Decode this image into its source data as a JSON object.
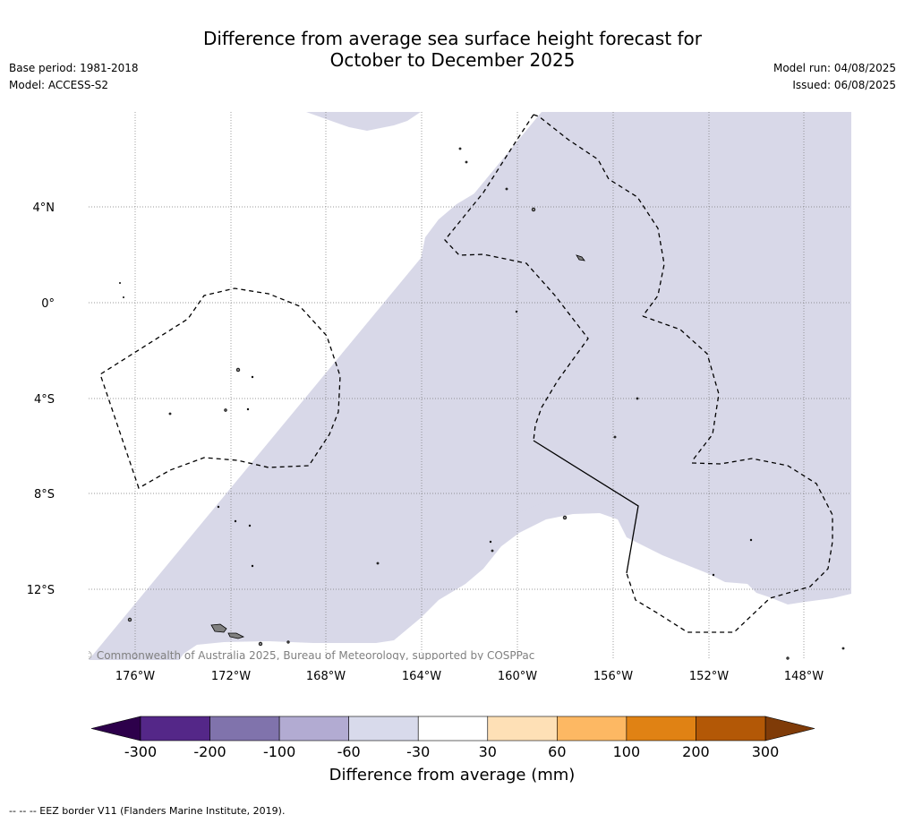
{
  "title_line1": "Difference from average sea surface height forecast for",
  "title_line2": "October to December 2025",
  "left_meta": {
    "base_period": "Base period: 1981-2018",
    "model": "Model: ACCESS-S2"
  },
  "right_meta": {
    "model_run": "Model run: 04/08/2025",
    "issued": "Issued: 06/08/2025"
  },
  "map": {
    "lon_ticks": [
      "176°W",
      "172°W",
      "168°W",
      "164°W",
      "160°W",
      "156°W",
      "152°W",
      "148°W"
    ],
    "lat_ticks": [
      "4°N",
      "0°",
      "4°S",
      "8°S",
      "12°S"
    ],
    "credit": "© Commonwealth of Australia 2025, Bureau of Meteorology, supported by COSPPac",
    "anomaly_fill_color": "#d8d8e8",
    "land_color": "#808080"
  },
  "colorbar": {
    "ticks": [
      "-300",
      "-200",
      "-100",
      "-60",
      "-30",
      "30",
      "60",
      "100",
      "200",
      "300"
    ],
    "colors": [
      "#542788",
      "#8073ac",
      "#b2abd2",
      "#d8daeb",
      "#ffffff",
      "#fee0b6",
      "#fdb863",
      "#e08214",
      "#b35806"
    ],
    "extend_low_color": "#2d004b",
    "extend_high_color": "#7f3b08",
    "label": "Difference from average (mm)"
  },
  "footnote": "-- -- -- EEZ border V11 (Flanders Marine Institute, 2019)."
}
